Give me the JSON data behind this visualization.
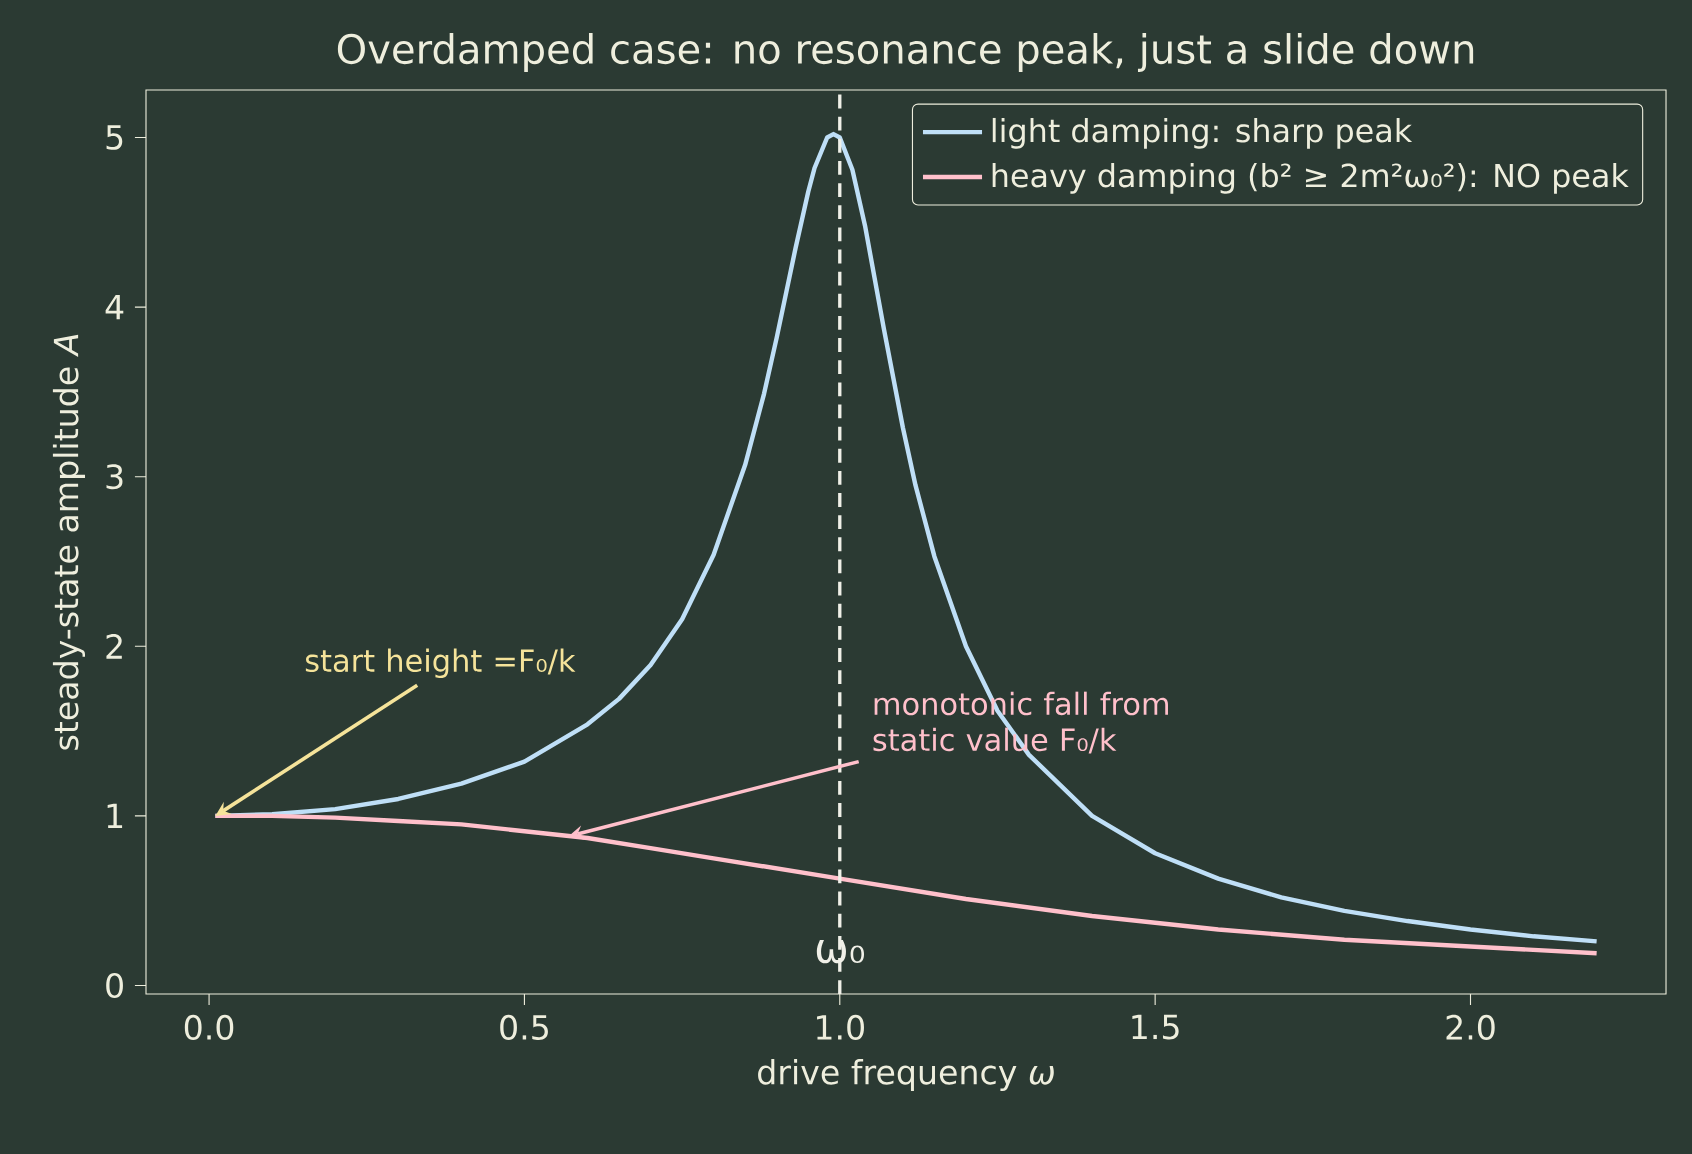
{
  "chart_data": {
    "type": "line",
    "title": "Overdamped case: no resonance peak, just a slide down",
    "xlabel": "drive frequency *ω*",
    "ylabel": "steady-state amplitude *A*",
    "series": [
      {
        "name": "light damping: sharp peak",
        "color": "#bfdff7",
        "x": [
          0.01,
          0.1,
          0.2,
          0.3,
          0.4,
          0.5,
          0.6,
          0.65,
          0.7,
          0.75,
          0.8,
          0.85,
          0.88,
          0.9,
          0.93,
          0.95,
          0.96,
          0.98,
          0.99,
          1.0,
          1.02,
          1.04,
          1.07,
          1.1,
          1.12,
          1.15,
          1.2,
          1.25,
          1.3,
          1.4,
          1.5,
          1.6,
          1.7,
          1.8,
          1.9,
          2.0,
          2.1,
          2.2
        ],
        "values": [
          1.0,
          1.01,
          1.04,
          1.1,
          1.19,
          1.32,
          1.54,
          1.69,
          1.89,
          2.16,
          2.54,
          3.07,
          3.49,
          3.82,
          4.35,
          4.68,
          4.82,
          5.0,
          5.02,
          5.0,
          4.81,
          4.48,
          3.87,
          3.29,
          2.95,
          2.53,
          2.0,
          1.62,
          1.36,
          1.0,
          0.78,
          0.63,
          0.52,
          0.44,
          0.38,
          0.33,
          0.29,
          0.26
        ]
      },
      {
        "name": "heavy damping (b² ≥ 2m²ω₀²): NO peak",
        "color": "#ffc0cb",
        "x": [
          0.01,
          0.1,
          0.2,
          0.3,
          0.4,
          0.5,
          0.6,
          0.7,
          0.8,
          0.9,
          1.0,
          1.2,
          1.4,
          1.6,
          1.8,
          2.0,
          2.2
        ],
        "values": [
          1.0,
          1.0,
          0.99,
          0.97,
          0.95,
          0.91,
          0.87,
          0.81,
          0.75,
          0.69,
          0.63,
          0.51,
          0.41,
          0.33,
          0.27,
          0.23,
          0.19
        ]
      }
    ],
    "xlim": [
      -0.1,
      2.31
    ],
    "ylim": [
      -0.05,
      5.28
    ],
    "xticks": [
      {
        "value": 0,
        "label": "0.0"
      },
      {
        "value": 0.5,
        "label": "0.5"
      },
      {
        "value": 1,
        "label": "1.0"
      },
      {
        "value": 1.5,
        "label": "1.5"
      },
      {
        "value": 2,
        "label": "2.0"
      }
    ],
    "yticks": [
      0,
      1,
      2,
      3,
      4,
      5
    ],
    "ref_lines": [
      {
        "axis": "x",
        "value": 1,
        "label": "ω₀",
        "color": "#f0f0e8",
        "line_style": "dashed"
      }
    ],
    "annotations": [
      {
        "text": "start height =F₀/k",
        "x": 0.01,
        "y": 1.0
      },
      {
        "text": "monotonic fall from static value F₀/k",
        "x": 0.57,
        "y": 0.88
      }
    ],
    "legend": "top right",
    "grid": false,
    "marker": "none",
    "line_style": "solid"
  }
}
